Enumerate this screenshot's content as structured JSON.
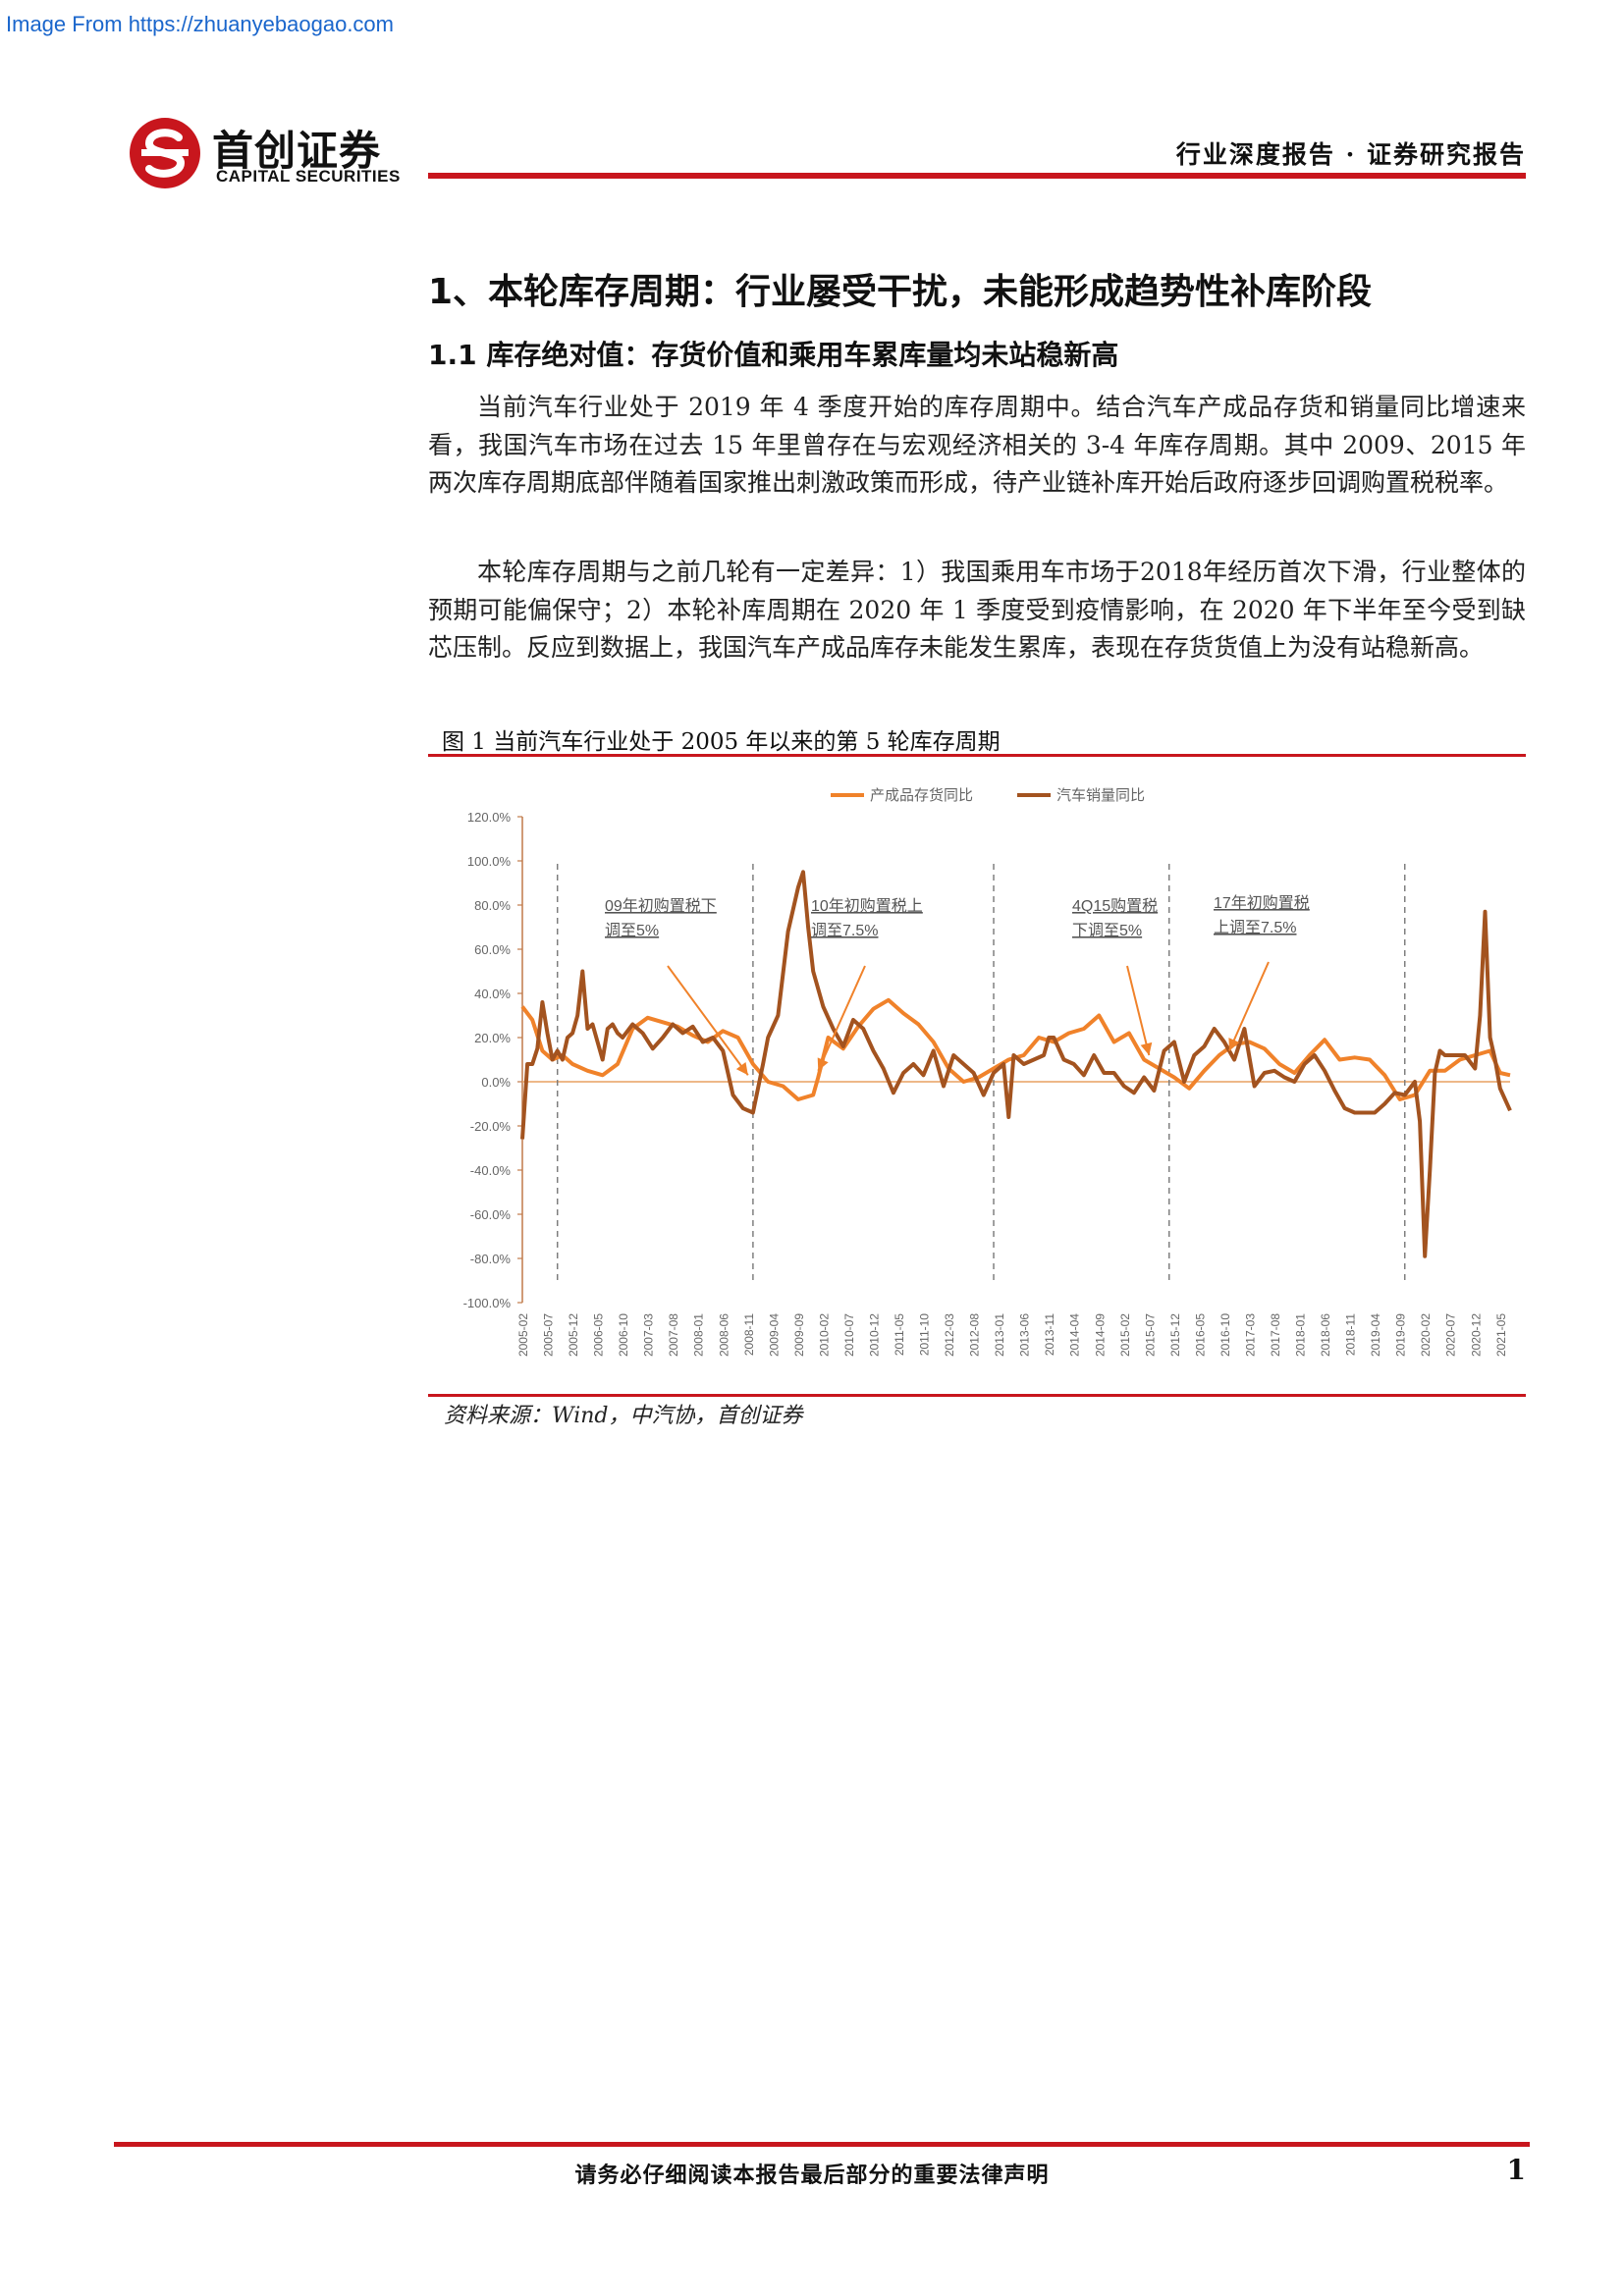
{
  "watermark": "Image From https://zhuanyebaogao.com",
  "logo": {
    "cn": "首创证券",
    "en": "CAPITAL SECURITIES",
    "brand_color": "#c8161d"
  },
  "header": {
    "right": "行业深度报告 · 证券研究报告"
  },
  "section": {
    "h1": "1、本轮库存周期：行业屡受干扰，未能形成趋势性补库阶段",
    "h2": "1.1 库存绝对值：存货价值和乘用车累库量均未站稳新高"
  },
  "paragraphs": [
    "当前汽车行业处于 2019 年 4 季度开始的库存周期中。结合汽车产成品存货和销量同比增速来看，我国汽车市场在过去 15 年里曾存在与宏观经济相关的 3-4 年库存周期。其中 2009、2015 年两次库存周期底部伴随着国家推出刺激政策而形成，待产业链补库开始后政府逐步回调购置税税率。",
    "本轮库存周期与之前几轮有一定差异：1）我国乘用车市场于2018年经历首次下滑，行业整体的预期可能偏保守；2）本轮补库周期在 2020 年 1 季度受到疫情影响，在 2020 年下半年至今受到缺芯压制。反应到数据上，我国汽车产成品库存未能发生累库，表现在存货货值上为没有站稳新高。"
  ],
  "figure": {
    "title": "图 1 当前汽车行业处于 2005 年以来的第 5 轮库存周期",
    "source": "资料来源：Wind，中汽协，首创证券"
  },
  "chart_data": {
    "type": "line",
    "title": "",
    "xlabel": "",
    "ylabel": "",
    "ylim": [
      -100,
      120
    ],
    "yticks": [
      "120.0%",
      "100.0%",
      "80.0%",
      "60.0%",
      "40.0%",
      "20.0%",
      "0.0%",
      "-20.0%",
      "-40.0%",
      "-60.0%",
      "-80.0%",
      "-100.0%"
    ],
    "ytick_values": [
      120,
      100,
      80,
      60,
      40,
      20,
      0,
      -20,
      -40,
      -60,
      -80,
      -100
    ],
    "grid": false,
    "legend_position": "top",
    "x_start": "2005-02",
    "x_end": "2021-07",
    "xticks": [
      "2005-02",
      "2005-07",
      "2005-12",
      "2006-05",
      "2006-10",
      "2007-03",
      "2007-08",
      "2008-01",
      "2008-06",
      "2008-11",
      "2009-04",
      "2009-09",
      "2010-02",
      "2010-07",
      "2010-12",
      "2011-05",
      "2011-10",
      "2012-03",
      "2012-08",
      "2013-01",
      "2013-06",
      "2013-11",
      "2014-04",
      "2014-09",
      "2015-02",
      "2015-07",
      "2015-12",
      "2016-05",
      "2016-10",
      "2017-03",
      "2017-08",
      "2018-01",
      "2018-06",
      "2018-11",
      "2019-04",
      "2019-09",
      "2020-02",
      "2020-07",
      "2020-12",
      "2021-05"
    ],
    "cycle_lines": [
      "2005-09",
      "2008-12",
      "2012-12",
      "2015-11",
      "2019-10"
    ],
    "series": [
      {
        "name": "产成品存货同比",
        "color": "#f0822a",
        "points": [
          [
            "2005-02",
            34
          ],
          [
            "2005-04",
            28
          ],
          [
            "2005-06",
            14
          ],
          [
            "2005-08",
            10
          ],
          [
            "2005-10",
            12
          ],
          [
            "2005-12",
            8
          ],
          [
            "2006-03",
            5
          ],
          [
            "2006-06",
            3
          ],
          [
            "2006-09",
            8
          ],
          [
            "2006-12",
            24
          ],
          [
            "2007-03",
            29
          ],
          [
            "2007-06",
            27
          ],
          [
            "2007-09",
            25
          ],
          [
            "2007-12",
            21
          ],
          [
            "2008-03",
            18
          ],
          [
            "2008-06",
            23
          ],
          [
            "2008-09",
            20
          ],
          [
            "2008-12",
            8
          ],
          [
            "2009-03",
            0
          ],
          [
            "2009-06",
            -2
          ],
          [
            "2009-09",
            -8
          ],
          [
            "2009-12",
            -6
          ],
          [
            "2010-01",
            2
          ],
          [
            "2010-03",
            20
          ],
          [
            "2010-06",
            15
          ],
          [
            "2010-09",
            25
          ],
          [
            "2010-12",
            33
          ],
          [
            "2011-03",
            37
          ],
          [
            "2011-06",
            31
          ],
          [
            "2011-09",
            26
          ],
          [
            "2011-12",
            18
          ],
          [
            "2012-03",
            6
          ],
          [
            "2012-06",
            0
          ],
          [
            "2012-09",
            2
          ],
          [
            "2012-12",
            6
          ],
          [
            "2013-03",
            10
          ],
          [
            "2013-06",
            12
          ],
          [
            "2013-09",
            20
          ],
          [
            "2013-12",
            18
          ],
          [
            "2014-03",
            22
          ],
          [
            "2014-06",
            24
          ],
          [
            "2014-09",
            30
          ],
          [
            "2014-12",
            18
          ],
          [
            "2015-03",
            22
          ],
          [
            "2015-06",
            10
          ],
          [
            "2015-09",
            6
          ],
          [
            "2015-12",
            2
          ],
          [
            "2016-03",
            -3
          ],
          [
            "2016-06",
            5
          ],
          [
            "2016-09",
            12
          ],
          [
            "2016-12",
            17
          ],
          [
            "2017-03",
            18
          ],
          [
            "2017-06",
            15
          ],
          [
            "2017-09",
            8
          ],
          [
            "2017-12",
            4
          ],
          [
            "2018-03",
            12
          ],
          [
            "2018-06",
            19
          ],
          [
            "2018-09",
            10
          ],
          [
            "2018-12",
            11
          ],
          [
            "2019-03",
            10
          ],
          [
            "2019-06",
            3
          ],
          [
            "2019-09",
            -8
          ],
          [
            "2019-12",
            -6
          ],
          [
            "2020-03",
            5
          ],
          [
            "2020-06",
            5
          ],
          [
            "2020-09",
            10
          ],
          [
            "2020-12",
            12
          ],
          [
            "2021-03",
            14
          ],
          [
            "2021-05",
            4
          ],
          [
            "2021-07",
            3
          ]
        ]
      },
      {
        "name": "汽车销量同比",
        "color": "#a3531f",
        "points": [
          [
            "2005-02",
            -26
          ],
          [
            "2005-03",
            8
          ],
          [
            "2005-04",
            8
          ],
          [
            "2005-05",
            15
          ],
          [
            "2005-06",
            36
          ],
          [
            "2005-07",
            22
          ],
          [
            "2005-08",
            10
          ],
          [
            "2005-09",
            14
          ],
          [
            "2005-10",
            10
          ],
          [
            "2005-11",
            20
          ],
          [
            "2005-12",
            22
          ],
          [
            "2006-01",
            30
          ],
          [
            "2006-02",
            50
          ],
          [
            "2006-03",
            24
          ],
          [
            "2006-04",
            26
          ],
          [
            "2006-05",
            18
          ],
          [
            "2006-06",
            10
          ],
          [
            "2006-07",
            24
          ],
          [
            "2006-08",
            26
          ],
          [
            "2006-09",
            22
          ],
          [
            "2006-10",
            20
          ],
          [
            "2006-12",
            26
          ],
          [
            "2007-02",
            22
          ],
          [
            "2007-04",
            15
          ],
          [
            "2007-06",
            20
          ],
          [
            "2007-08",
            26
          ],
          [
            "2007-10",
            22
          ],
          [
            "2007-12",
            25
          ],
          [
            "2008-02",
            18
          ],
          [
            "2008-04",
            20
          ],
          [
            "2008-06",
            14
          ],
          [
            "2008-08",
            -6
          ],
          [
            "2008-10",
            -12
          ],
          [
            "2008-12",
            -14
          ],
          [
            "2009-02",
            8
          ],
          [
            "2009-03",
            20
          ],
          [
            "2009-05",
            30
          ],
          [
            "2009-07",
            68
          ],
          [
            "2009-09",
            88
          ],
          [
            "2009-10",
            95
          ],
          [
            "2009-11",
            70
          ],
          [
            "2009-12",
            50
          ],
          [
            "2010-02",
            34
          ],
          [
            "2010-04",
            24
          ],
          [
            "2010-06",
            16
          ],
          [
            "2010-08",
            28
          ],
          [
            "2010-10",
            24
          ],
          [
            "2010-12",
            14
          ],
          [
            "2011-02",
            6
          ],
          [
            "2011-04",
            -5
          ],
          [
            "2011-06",
            4
          ],
          [
            "2011-08",
            8
          ],
          [
            "2011-10",
            3
          ],
          [
            "2011-12",
            14
          ],
          [
            "2012-02",
            -2
          ],
          [
            "2012-04",
            12
          ],
          [
            "2012-06",
            8
          ],
          [
            "2012-08",
            4
          ],
          [
            "2012-10",
            -6
          ],
          [
            "2012-12",
            4
          ],
          [
            "2013-02",
            8
          ],
          [
            "2013-03",
            -16
          ],
          [
            "2013-04",
            12
          ],
          [
            "2013-06",
            8
          ],
          [
            "2013-08",
            10
          ],
          [
            "2013-10",
            12
          ],
          [
            "2013-11",
            20
          ],
          [
            "2013-12",
            20
          ],
          [
            "2014-02",
            10
          ],
          [
            "2014-04",
            8
          ],
          [
            "2014-06",
            3
          ],
          [
            "2014-08",
            12
          ],
          [
            "2014-10",
            4
          ],
          [
            "2014-12",
            4
          ],
          [
            "2015-02",
            -2
          ],
          [
            "2015-04",
            -5
          ],
          [
            "2015-06",
            2
          ],
          [
            "2015-08",
            -4
          ],
          [
            "2015-10",
            14
          ],
          [
            "2015-12",
            18
          ],
          [
            "2016-02",
            0
          ],
          [
            "2016-04",
            12
          ],
          [
            "2016-06",
            16
          ],
          [
            "2016-08",
            24
          ],
          [
            "2016-10",
            18
          ],
          [
            "2016-12",
            10
          ],
          [
            "2017-02",
            24
          ],
          [
            "2017-04",
            -2
          ],
          [
            "2017-06",
            4
          ],
          [
            "2017-08",
            5
          ],
          [
            "2017-10",
            2
          ],
          [
            "2017-12",
            0
          ],
          [
            "2018-02",
            8
          ],
          [
            "2018-04",
            12
          ],
          [
            "2018-06",
            5
          ],
          [
            "2018-08",
            -4
          ],
          [
            "2018-10",
            -12
          ],
          [
            "2018-12",
            -14
          ],
          [
            "2019-02",
            -14
          ],
          [
            "2019-04",
            -14
          ],
          [
            "2019-06",
            -10
          ],
          [
            "2019-08",
            -5
          ],
          [
            "2019-10",
            -6
          ],
          [
            "2019-12",
            0
          ],
          [
            "2020-01",
            -18
          ],
          [
            "2020-02",
            -79
          ],
          [
            "2020-03",
            -40
          ],
          [
            "2020-04",
            4
          ],
          [
            "2020-05",
            14
          ],
          [
            "2020-06",
            12
          ],
          [
            "2020-08",
            12
          ],
          [
            "2020-10",
            12
          ],
          [
            "2020-12",
            6
          ],
          [
            "2021-01",
            30
          ],
          [
            "2021-02",
            77
          ],
          [
            "2021-03",
            20
          ],
          [
            "2021-04",
            10
          ],
          [
            "2021-05",
            -3
          ],
          [
            "2021-07",
            -13
          ]
        ]
      }
    ],
    "annotations": [
      {
        "text": [
          "09年初购置税下",
          "调至5%"
        ],
        "target": [
          "2008-11",
          3
        ]
      },
      {
        "text": [
          "10年初购置税上",
          "调至7.5%"
        ],
        "target": [
          "2010-01",
          5
        ]
      },
      {
        "text": [
          "4Q15购置税",
          "下调至5%"
        ],
        "target": [
          "2015-07",
          12
        ]
      },
      {
        "text": [
          "17年初购置税",
          "上调至7.5%"
        ],
        "target": [
          "2016-11",
          14
        ]
      }
    ]
  },
  "footer": {
    "text": "请务必仔细阅读本报告最后部分的重要法律声明",
    "page": "1"
  }
}
